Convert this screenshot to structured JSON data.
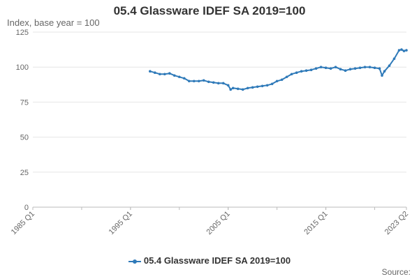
{
  "chart_data": {
    "type": "line",
    "title": "05.4 Glassware IDEF SA 2019=100",
    "subtitle": "Index, base year = 100",
    "ylim": [
      0,
      125
    ],
    "yticks": [
      0,
      25,
      50,
      75,
      100,
      125
    ],
    "xrange": [
      1985,
      2023.25
    ],
    "x_tick_labels": [
      {
        "label": "1985 Q1",
        "x": 1985
      },
      {
        "label": "1995 Q1",
        "x": 1995
      },
      {
        "label": "2005 Q1",
        "x": 2005
      },
      {
        "label": "2015 Q1",
        "x": 2015
      },
      {
        "label": "2023 Q2",
        "x": 2023.25
      }
    ],
    "grid": "horizontal",
    "legend_position": "bottom",
    "series": [
      {
        "name": "05.4 Glassware IDEF SA 2019=100",
        "color": "#2f7ab9",
        "points": [
          [
            1997.0,
            97
          ],
          [
            1997.5,
            96
          ],
          [
            1998.0,
            95
          ],
          [
            1998.5,
            95
          ],
          [
            1999.0,
            95.5
          ],
          [
            1999.5,
            94
          ],
          [
            2000.0,
            93
          ],
          [
            2000.5,
            92
          ],
          [
            2001.0,
            90
          ],
          [
            2001.5,
            90
          ],
          [
            2002.0,
            90
          ],
          [
            2002.5,
            90.5
          ],
          [
            2003.0,
            89.5
          ],
          [
            2003.5,
            89
          ],
          [
            2004.0,
            88.5
          ],
          [
            2004.5,
            88.5
          ],
          [
            2005.0,
            87
          ],
          [
            2005.25,
            84
          ],
          [
            2005.5,
            85
          ],
          [
            2006.0,
            84.5
          ],
          [
            2006.5,
            84
          ],
          [
            2007.0,
            85
          ],
          [
            2007.5,
            85.5
          ],
          [
            2008.0,
            86
          ],
          [
            2008.5,
            86.5
          ],
          [
            2009.0,
            87
          ],
          [
            2009.5,
            88
          ],
          [
            2010.0,
            90
          ],
          [
            2010.5,
            91
          ],
          [
            2011.0,
            93
          ],
          [
            2011.5,
            95
          ],
          [
            2012.0,
            96
          ],
          [
            2012.5,
            97
          ],
          [
            2013.0,
            97.5
          ],
          [
            2013.5,
            98
          ],
          [
            2014.0,
            99
          ],
          [
            2014.5,
            100
          ],
          [
            2015.0,
            99.5
          ],
          [
            2015.5,
            99
          ],
          [
            2016.0,
            100
          ],
          [
            2016.5,
            98.5
          ],
          [
            2017.0,
            97.5
          ],
          [
            2017.5,
            98.5
          ],
          [
            2018.0,
            99
          ],
          [
            2018.5,
            99.5
          ],
          [
            2019.0,
            100
          ],
          [
            2019.5,
            100
          ],
          [
            2020.0,
            99.5
          ],
          [
            2020.5,
            99
          ],
          [
            2020.75,
            94
          ],
          [
            2021.0,
            97
          ],
          [
            2021.5,
            101
          ],
          [
            2022.0,
            106
          ],
          [
            2022.5,
            112
          ],
          [
            2022.75,
            112.5
          ],
          [
            2023.0,
            111.5
          ],
          [
            2023.25,
            112
          ]
        ]
      }
    ],
    "source": "Source:"
  }
}
